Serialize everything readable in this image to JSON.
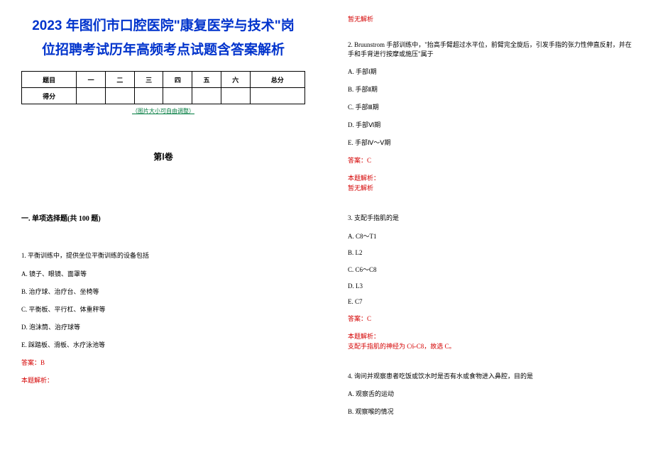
{
  "title_line1": "2023 年图们市口腔医院\"康复医学与技术\"岗",
  "title_line2": "位招聘考试历年高频考点试题含答案解析",
  "score_table": {
    "headers": [
      "题目",
      "一",
      "二",
      "三",
      "四",
      "五",
      "六",
      "总分"
    ],
    "row_label": "得分"
  },
  "img_note": "（图片大小可自由调整）",
  "juan": "第Ⅰ卷",
  "section_head": "一. 单项选择题(共 100 题)",
  "q1": {
    "stem": "1. 平衡训练中，提供坐位平衡训练的设备包括",
    "opts": [
      "A. 镜子、眼镜、面罩等",
      "B. 治疗球、治疗台、坐椅等",
      "C. 平衡板、平行杠、体重秤等",
      "D. 泡沫筒、治疗球等",
      "E. 踩踏板、滑板、水疗泳池等"
    ],
    "answer": "答案：B",
    "analysis_label": "本题解析：",
    "analysis_body_top": "暂无解析"
  },
  "q2": {
    "stem": "2. Bruunstrom 手部训练中，\"抬高手臂超过水平位，前臂完全旋后，引发手指的张力性伸直反射，并在手和手背进行按摩或施压\"属于",
    "opts": [
      "A. 手部Ⅰ期",
      "B. 手部Ⅱ期",
      "C. 手部Ⅲ期",
      "D. 手部Ⅵ期",
      "E. 手部Ⅳ～Ⅴ期"
    ],
    "answer": "答案：C",
    "analysis_label": "本题解析：",
    "analysis_body": "暂无解析"
  },
  "q3": {
    "stem": "3. 支配手指肌的是",
    "opts": [
      "A. C8～T1",
      "B. L2",
      "C. C6～C8",
      "D. L3",
      "E. C7"
    ],
    "answer": "答案：C",
    "analysis_label": "本题解析：",
    "analysis_body": "支配手指肌的神经为 C6-C8，故选 C。"
  },
  "q4": {
    "stem": "4. 询问并观察患者吃饭或饮水时是否有水或食物进入鼻腔，目的是",
    "opts": [
      "A. 观察舌的运动",
      "B. 观察喉的情况"
    ]
  },
  "colors": {
    "title": "#0033cc",
    "note": "#007b3f",
    "red": "#d40000",
    "text": "#000000",
    "background": "#ffffff"
  }
}
